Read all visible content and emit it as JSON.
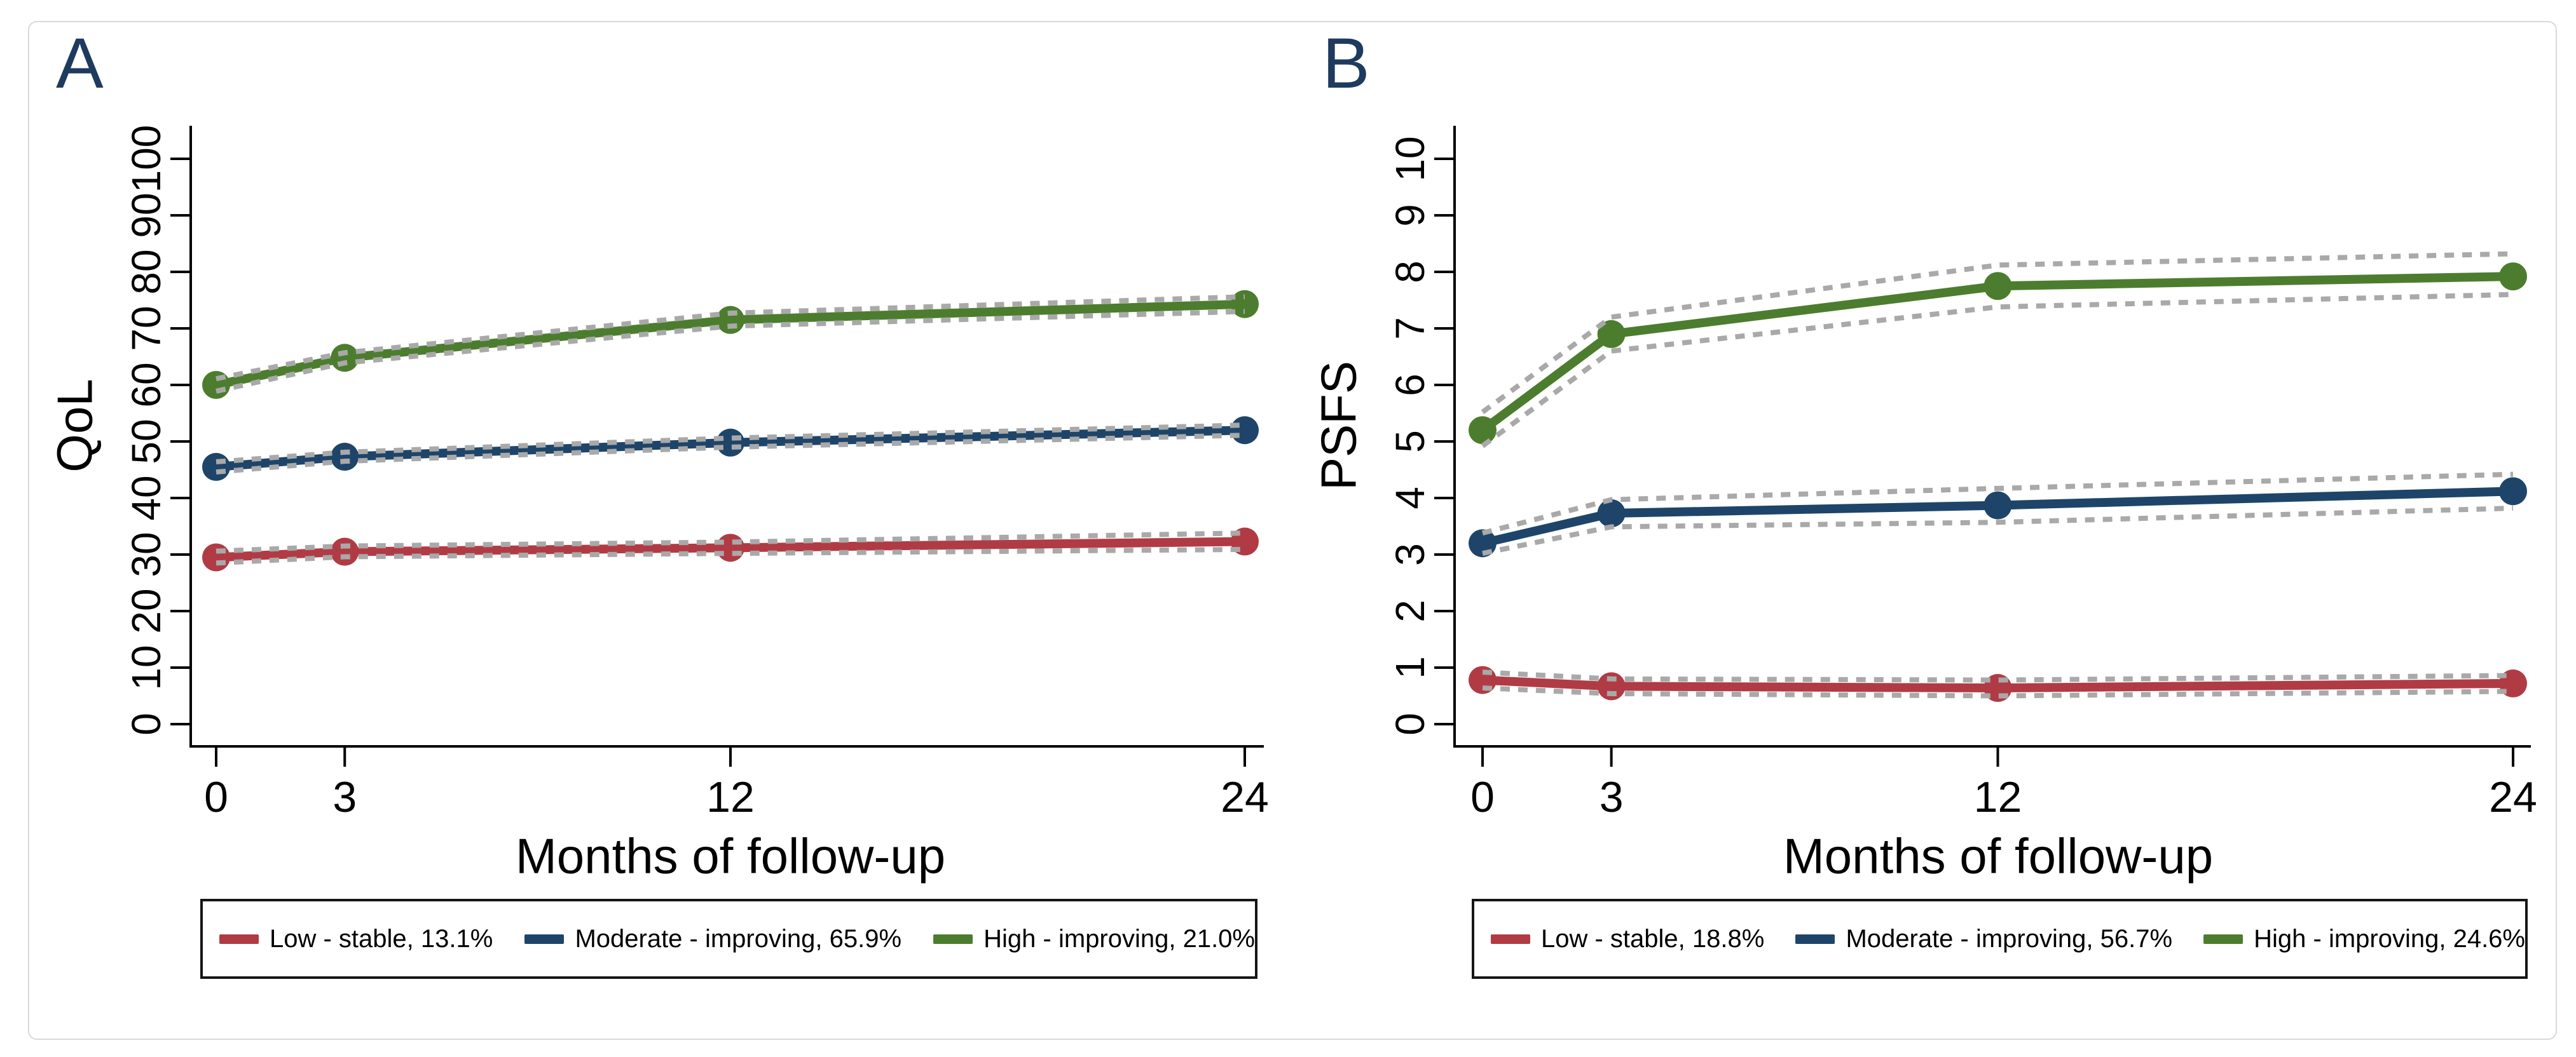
{
  "figure": {
    "x_axis_title": "Months of follow-up",
    "colors": {
      "low_stable": "#b13b44",
      "moderate_improving": "#1e4569",
      "high_improving": "#4c7d2e",
      "confidence_interval": "#a9a9a9",
      "axis": "#000000",
      "panel_label": "#1e3a5e",
      "card_border": "#d9d9d9",
      "legend_border": "#161616"
    }
  },
  "chart_data": [
    {
      "type": "line",
      "panel_label": "A",
      "ylabel": "QoL",
      "xlabel": "Months of follow-up",
      "x": [
        0,
        3,
        12,
        24
      ],
      "xticks": [
        0,
        3,
        12,
        24
      ],
      "yticks": [
        0,
        10,
        20,
        30,
        40,
        50,
        60,
        70,
        80,
        90,
        100
      ],
      "xlim": [
        0,
        24
      ],
      "ylim": [
        0,
        100
      ],
      "grid": false,
      "legend_position": "bottom",
      "ci_style": "dashed-gray",
      "series": [
        {
          "name": "Low - stable, 13.1%",
          "color": "#b13b44",
          "values": [
            29.5,
            30.5,
            31.2,
            32.3
          ],
          "ci_upper": [
            30.6,
            31.5,
            32.2,
            33.8
          ],
          "ci_lower": [
            28.5,
            29.6,
            30.2,
            30.9
          ]
        },
        {
          "name": "Moderate - improving, 65.9%",
          "color": "#1e4569",
          "values": [
            45.5,
            47.3,
            49.8,
            52.0
          ],
          "ci_upper": [
            46.4,
            48.1,
            50.6,
            52.9
          ],
          "ci_lower": [
            44.6,
            46.5,
            49.0,
            51.1
          ]
        },
        {
          "name": "High - improving, 21.0%",
          "color": "#4c7d2e",
          "values": [
            60.0,
            64.8,
            71.5,
            74.3
          ],
          "ci_upper": [
            61.1,
            65.7,
            72.7,
            75.6
          ],
          "ci_lower": [
            58.9,
            63.9,
            70.4,
            73.0
          ]
        }
      ]
    },
    {
      "type": "line",
      "panel_label": "B",
      "ylabel": "PSFS",
      "xlabel": "Months of follow-up",
      "x": [
        0,
        3,
        12,
        24
      ],
      "xticks": [
        0,
        3,
        12,
        24
      ],
      "yticks": [
        0,
        1,
        2,
        3,
        4,
        5,
        6,
        7,
        8,
        9,
        10
      ],
      "xlim": [
        0,
        24
      ],
      "ylim": [
        0,
        10
      ],
      "grid": false,
      "legend_position": "bottom",
      "ci_style": "dashed-gray",
      "series": [
        {
          "name": "Low - stable, 18.8%",
          "color": "#b13b44",
          "values": [
            0.78,
            0.67,
            0.64,
            0.72
          ],
          "ci_upper": [
            0.92,
            0.8,
            0.78,
            0.86
          ],
          "ci_lower": [
            0.64,
            0.54,
            0.5,
            0.58
          ]
        },
        {
          "name": "Moderate - improving, 56.7%",
          "color": "#1e4569",
          "values": [
            3.2,
            3.73,
            3.87,
            4.12
          ],
          "ci_upper": [
            3.38,
            3.97,
            4.17,
            4.42
          ],
          "ci_lower": [
            3.02,
            3.49,
            3.57,
            3.82
          ]
        },
        {
          "name": "High - improving, 24.6%",
          "color": "#4c7d2e",
          "values": [
            5.2,
            6.9,
            7.75,
            7.92
          ],
          "ci_upper": [
            5.52,
            7.2,
            8.12,
            8.32
          ],
          "ci_lower": [
            4.92,
            6.6,
            7.38,
            7.6
          ]
        }
      ]
    }
  ]
}
